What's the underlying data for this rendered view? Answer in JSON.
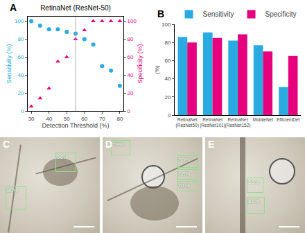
{
  "chart_data": [
    {
      "type": "scatter",
      "title": "RetinaNet (ResNet-50)",
      "annotations": [
        "A"
      ],
      "x_label": "Detection Threshold (%)",
      "y_label": "Sensitivity (%)",
      "y2_label": "Specificity (%)",
      "x": [
        30,
        35,
        40,
        45,
        50,
        55,
        60,
        65,
        70,
        75,
        80
      ],
      "series": [
        {
          "name": "Sensitivity",
          "color": "#29abe2",
          "marker": "circle",
          "values": [
            100,
            95,
            91,
            91,
            88,
            86,
            80,
            74,
            50,
            45,
            28
          ]
        },
        {
          "name": "Specificity",
          "color": "#e6007e",
          "marker": "triangle",
          "axis": "y2",
          "values": [
            5,
            14,
            25,
            55,
            60,
            80,
            90,
            100,
            100,
            100,
            100
          ]
        }
      ],
      "xlim": [
        28,
        82
      ],
      "xticks": [
        30,
        40,
        50,
        60,
        70,
        80
      ],
      "ylim": [
        0,
        105
      ],
      "yticks": [
        0,
        20,
        40,
        60,
        80,
        100
      ],
      "y2lim": [
        0,
        105
      ],
      "y2ticks": [
        0,
        20,
        40,
        60,
        80,
        100
      ],
      "threshold_line": 55
    },
    {
      "type": "bar",
      "annotations": [
        "B"
      ],
      "y_label": "(%)",
      "categories": [
        "RetinaNet\n(ResNet50)",
        "RetinaNet\n(ResNet101)",
        "RetinaNet\n(ResNet152)",
        "MobileNet",
        "EfficientDet"
      ],
      "series": [
        {
          "name": "Sensitivity",
          "color": "#29abe2",
          "values": [
            86,
            91,
            82,
            77,
            31
          ]
        },
        {
          "name": "Specificity",
          "color": "#e6007e",
          "values": [
            80,
            85,
            89,
            70,
            65
          ]
        }
      ],
      "ylim": [
        0,
        100
      ],
      "yticks": [
        0,
        20,
        40,
        60,
        80,
        100
      ],
      "legend": "top"
    }
  ],
  "images": [
    {
      "label": "C",
      "detections": [
        "80%",
        "56%"
      ]
    },
    {
      "label": "D",
      "detections": [
        "79%",
        "60%",
        "68%",
        "61%"
      ]
    },
    {
      "label": "E",
      "detections": [
        "55%",
        "81%"
      ]
    }
  ]
}
